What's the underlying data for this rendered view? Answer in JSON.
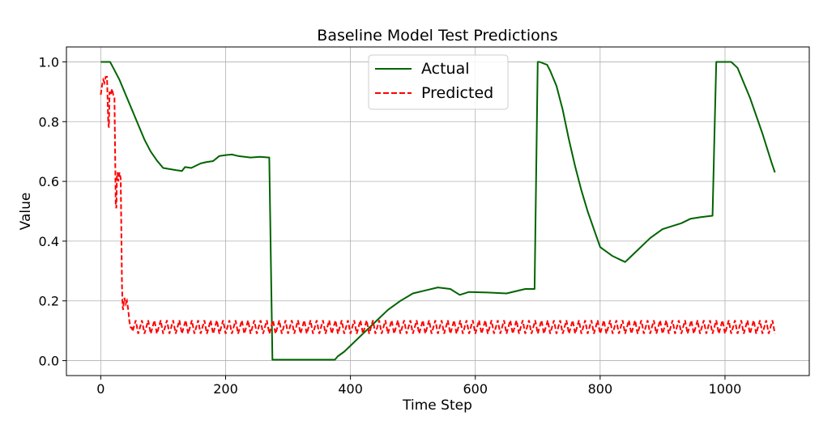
{
  "chart_data": {
    "type": "line",
    "title": "Baseline Model Test Predictions",
    "xlabel": "Time Step",
    "ylabel": "Value",
    "xlim": [
      -55,
      1135
    ],
    "ylim": [
      -0.05,
      1.05
    ],
    "xticks": [
      0,
      200,
      400,
      600,
      800,
      1000
    ],
    "yticks": [
      0.0,
      0.2,
      0.4,
      0.6,
      0.8,
      1.0
    ],
    "xtick_labels": [
      "0",
      "200",
      "400",
      "600",
      "800",
      "1000"
    ],
    "ytick_labels": [
      "0.0",
      "0.2",
      "0.4",
      "0.6",
      "0.8",
      "1.0"
    ],
    "grid": true,
    "legend_position": "upper-center",
    "series": [
      {
        "name": "Actual",
        "color": "#006400",
        "style": "solid",
        "x": [
          0,
          15,
          20,
          30,
          40,
          50,
          60,
          70,
          80,
          90,
          100,
          120,
          130,
          135,
          145,
          160,
          170,
          180,
          190,
          200,
          210,
          220,
          240,
          255,
          270,
          272,
          275,
          300,
          350,
          375,
          380,
          390,
          400,
          420,
          440,
          460,
          480,
          500,
          520,
          540,
          560,
          575,
          590,
          620,
          650,
          680,
          695,
          700,
          703,
          715,
          720,
          730,
          740,
          750,
          760,
          770,
          780,
          790,
          800,
          820,
          840,
          845,
          860,
          880,
          900,
          930,
          945,
          960,
          980,
          983,
          986,
          1000,
          1010,
          1020,
          1040,
          1060,
          1075,
          1080
        ],
        "y": [
          1.0,
          1.0,
          0.98,
          0.94,
          0.89,
          0.84,
          0.79,
          0.74,
          0.7,
          0.67,
          0.645,
          0.638,
          0.635,
          0.648,
          0.645,
          0.66,
          0.665,
          0.668,
          0.685,
          0.688,
          0.69,
          0.685,
          0.68,
          0.682,
          0.68,
          0.4,
          0.003,
          0.003,
          0.003,
          0.003,
          0.015,
          0.03,
          0.05,
          0.09,
          0.13,
          0.17,
          0.2,
          0.225,
          0.235,
          0.245,
          0.24,
          0.22,
          0.23,
          0.228,
          0.225,
          0.24,
          0.24,
          1.0,
          1.0,
          0.99,
          0.97,
          0.92,
          0.84,
          0.74,
          0.65,
          0.57,
          0.5,
          0.44,
          0.38,
          0.35,
          0.33,
          0.34,
          0.37,
          0.41,
          0.44,
          0.46,
          0.475,
          0.48,
          0.485,
          0.75,
          1.0,
          1.0,
          1.0,
          0.98,
          0.88,
          0.76,
          0.66,
          0.63
        ]
      },
      {
        "name": "Predicted",
        "color": "#ff0000",
        "style": "dashed",
        "x": [
          0,
          2,
          4,
          6,
          8,
          10,
          12,
          13,
          14,
          16,
          18,
          20,
          22,
          24,
          25,
          26,
          27,
          28,
          30,
          32,
          34,
          35,
          36,
          37,
          38,
          40,
          42,
          44,
          46,
          48,
          50
        ],
        "y": [
          0.89,
          0.92,
          0.94,
          0.93,
          0.95,
          0.95,
          0.8,
          0.78,
          0.9,
          0.89,
          0.91,
          0.89,
          0.88,
          0.52,
          0.51,
          0.62,
          0.63,
          0.6,
          0.63,
          0.61,
          0.25,
          0.18,
          0.17,
          0.2,
          0.21,
          0.19,
          0.2,
          0.17,
          0.13,
          0.11,
          0.11
        ],
        "oscillation_after_x50": {
          "x_start": 50,
          "x_end": 1080,
          "y_min": 0.09,
          "y_max": 0.135,
          "period": 10
        }
      }
    ]
  }
}
